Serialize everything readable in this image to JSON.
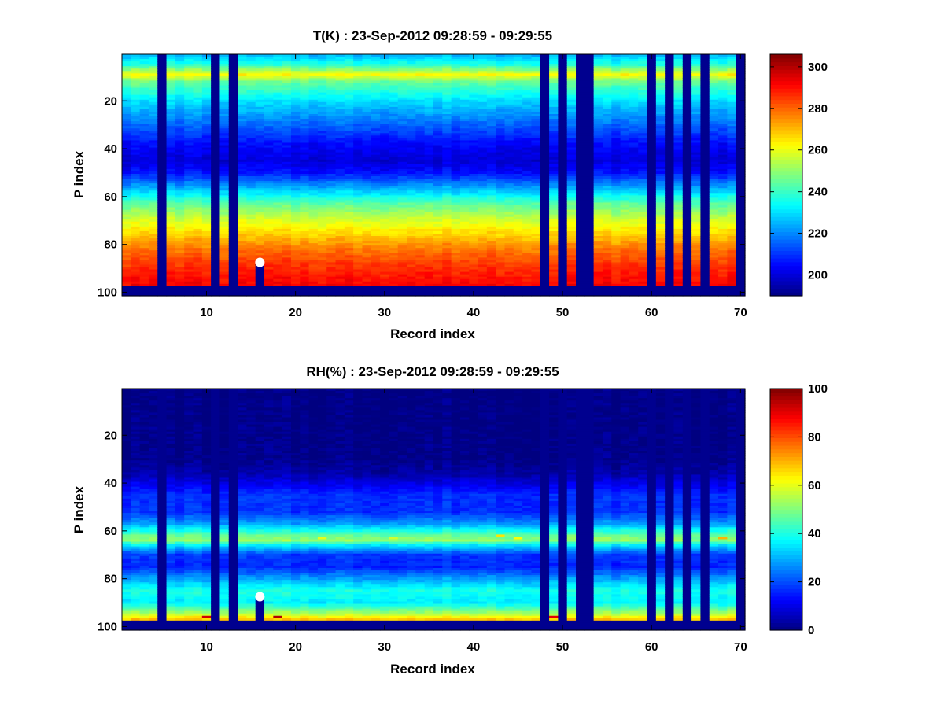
{
  "figure": {
    "background": "#ffffff"
  },
  "chart_data": [
    {
      "type": "heatmap",
      "title": "T(K) : 23-Sep-2012 09:28:59 - 09:29:55",
      "xlabel": "Record index",
      "ylabel": "P index",
      "xlim": [
        0.5,
        70.5
      ],
      "ylim": [
        0.5,
        101.5
      ],
      "y_reversed": true,
      "x_ticks": [
        10,
        20,
        30,
        40,
        50,
        60,
        70
      ],
      "y_ticks": [
        20,
        40,
        60,
        80,
        100
      ],
      "colormap": "jet",
      "clim": [
        190,
        306
      ],
      "colorbar_ticks": [
        200,
        220,
        240,
        260,
        280,
        300
      ],
      "fill_value_color": "#00008f",
      "missing_records": [
        5,
        11,
        13,
        48,
        50,
        52,
        53,
        60,
        62,
        64,
        66,
        70
      ],
      "bottom_fill_levels": [
        98,
        99,
        100,
        101
      ],
      "profile": {
        "p_index": [
          1,
          5,
          9,
          12,
          20,
          30,
          38,
          45,
          50,
          57,
          63,
          70,
          76,
          82,
          88,
          94,
          97
        ],
        "value": [
          226,
          238,
          262,
          246,
          230,
          216,
          205,
          200,
          206,
          226,
          244,
          258,
          268,
          278,
          285,
          290,
          292
        ]
      },
      "marker": {
        "record": 16,
        "p_index": 87.5,
        "color": "#ffffff"
      },
      "marker_column": {
        "record": 16,
        "from_p_index": 88
      }
    },
    {
      "type": "heatmap",
      "title": "RH(%) : 23-Sep-2012 09:28:59 - 09:29:55",
      "xlabel": "Record index",
      "ylabel": "P index",
      "xlim": [
        0.5,
        70.5
      ],
      "ylim": [
        0.5,
        101.5
      ],
      "y_reversed": true,
      "x_ticks": [
        10,
        20,
        30,
        40,
        50,
        60,
        70
      ],
      "y_ticks": [
        20,
        40,
        60,
        80,
        100
      ],
      "colormap": "jet",
      "clim": [
        0,
        100
      ],
      "colorbar_ticks": [
        0,
        20,
        40,
        60,
        80,
        100
      ],
      "fill_value_color": "#00008f",
      "missing_records": [
        5,
        11,
        13,
        48,
        50,
        52,
        53,
        60,
        62,
        64,
        66,
        70
      ],
      "bottom_fill_levels": [
        98,
        99,
        100,
        101
      ],
      "profile": {
        "p_index": [
          1,
          30,
          36,
          45,
          52,
          57,
          62,
          64,
          66,
          70,
          75,
          80,
          85,
          90,
          94,
          97
        ],
        "value": [
          0,
          1,
          4,
          17,
          17,
          28,
          48,
          52,
          36,
          18,
          16,
          28,
          40,
          36,
          52,
          68
        ]
      },
      "hot_spots": [
        {
          "record": 43,
          "p_index": 62,
          "value": 65
        },
        {
          "record": 45,
          "p_index": 63,
          "value": 62
        },
        {
          "record": 68,
          "p_index": 63,
          "value": 70
        },
        {
          "record": 23,
          "p_index": 63,
          "value": 60
        },
        {
          "record": 31,
          "p_index": 63,
          "value": 58
        },
        {
          "record": 10,
          "p_index": 96,
          "value": 92
        },
        {
          "record": 18,
          "p_index": 96,
          "value": 95
        },
        {
          "record": 49,
          "p_index": 96,
          "value": 90
        }
      ],
      "marker": {
        "record": 16,
        "p_index": 87.5,
        "color": "#ffffff"
      },
      "marker_column": {
        "record": 16,
        "from_p_index": 88
      }
    }
  ]
}
